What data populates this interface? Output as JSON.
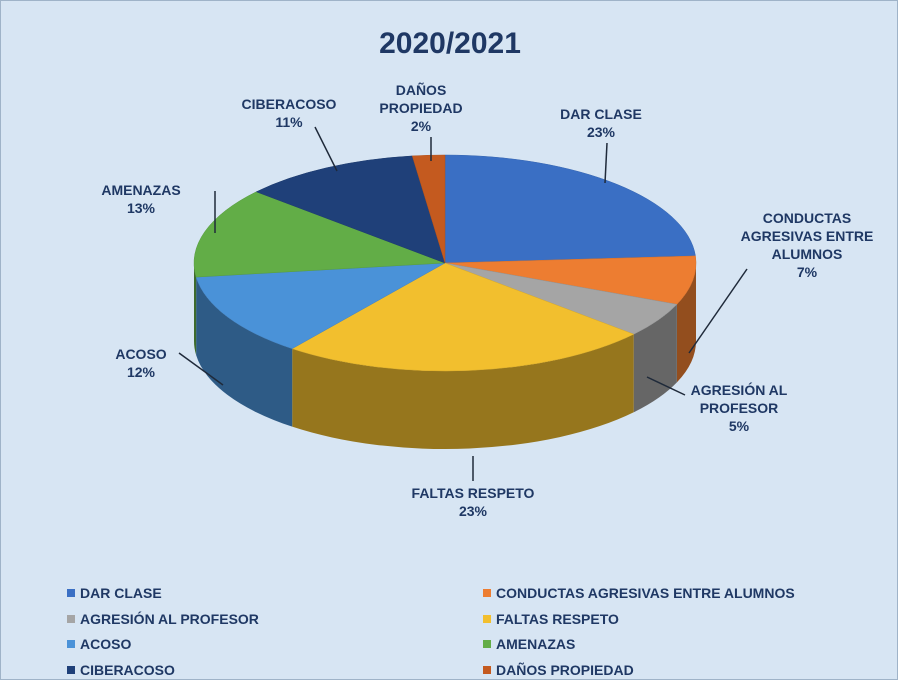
{
  "chart_data": {
    "type": "pie",
    "title": "2020/2021",
    "categories": [
      "DAR CLASE",
      "CONDUCTAS AGRESIVAS ENTRE ALUMNOS",
      "AGRESIÓN AL PROFESOR",
      "FALTAS RESPETO",
      "ACOSO",
      "AMENAZAS",
      "CIBERACOSO",
      "DAÑOS PROPIEDAD"
    ],
    "values": [
      23,
      7,
      5,
      23,
      12,
      13,
      11,
      2
    ],
    "value_labels": [
      "23%",
      "7%",
      "5%",
      "23%",
      "12%",
      "13%",
      "11%",
      "2%"
    ],
    "colors": [
      "#3a6fc4",
      "#ed7d31",
      "#a5a5a5",
      "#f2bf2e",
      "#4a92d8",
      "#62ad47",
      "#1f4079",
      "#c45a1f"
    ],
    "legend": "bottom"
  }
}
